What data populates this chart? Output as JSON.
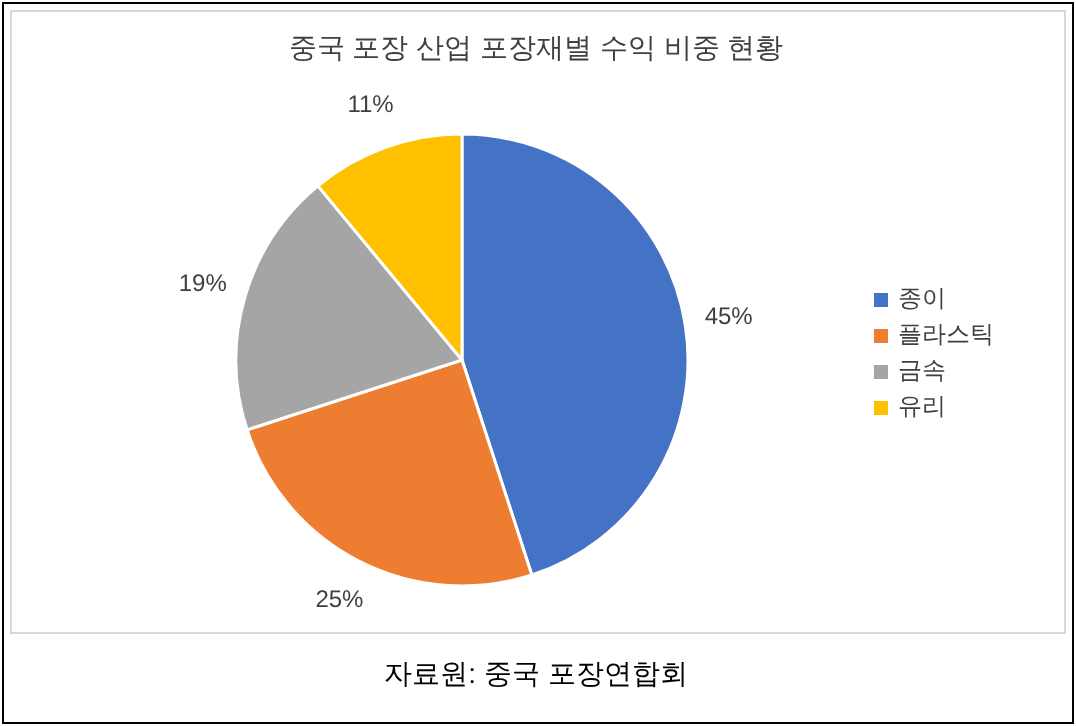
{
  "chart_data": {
    "type": "pie",
    "title": "중국 포장 산업 포장재별 수익 비중 현황",
    "categories": [
      "종이",
      "플라스틱",
      "금속",
      "유리"
    ],
    "values": [
      45,
      25,
      19,
      11
    ],
    "colors": [
      "#4472c4",
      "#ed7d31",
      "#a5a5a5",
      "#ffc000"
    ],
    "value_labels": [
      "45%",
      "25%",
      "19%",
      "11%"
    ],
    "legend": "right",
    "annotations": [
      "자료원: 중국 포장연합회"
    ]
  }
}
